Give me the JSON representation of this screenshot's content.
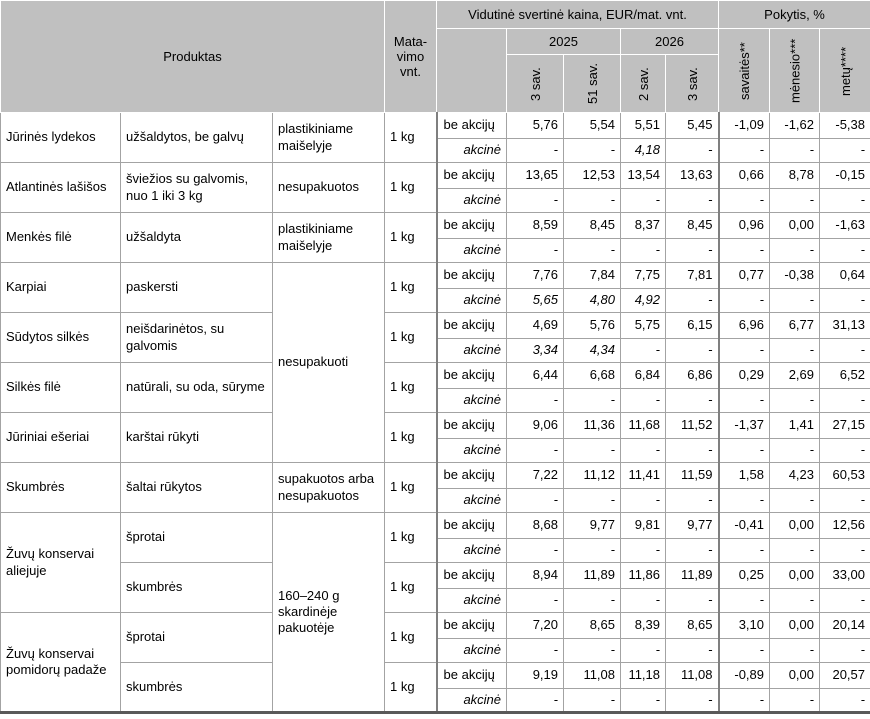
{
  "header": {
    "produktas": "Produktas",
    "unit_col": "Mata-vimo vnt.",
    "price_group": "Vidutinė svertinė kaina, EUR/mat. vnt.",
    "change_group": "Pokytis, %",
    "year_2025": "2025",
    "year_2026": "2026",
    "weeks": [
      "3 sav.",
      "51 sav.",
      "2 sav.",
      "3 sav."
    ],
    "change_cols": [
      "savaitės**",
      "mėnesio***",
      "metų****"
    ]
  },
  "row_labels": {
    "regular": "be akcijų",
    "promo": "akcinė"
  },
  "products": [
    {
      "name": "Jūrinės lydekos",
      "name_rowspan": 2,
      "description": "užšaldytos, be galvų",
      "packaging": "plastikiniame maišelyje",
      "packaging_rowspan": 2,
      "unit": "1 kg",
      "regular": [
        "5,76",
        "5,54",
        "5,51",
        "5,45",
        "-1,09",
        "-1,62",
        "-5,38"
      ],
      "promo": [
        "-",
        "-",
        "4,18",
        "-",
        "-",
        "-",
        "-"
      ]
    },
    {
      "name": "Atlantinės lašišos",
      "name_rowspan": 2,
      "description": "šviežios su galvomis, nuo 1 iki 3 kg",
      "packaging": "nesupakuotos",
      "packaging_rowspan": 2,
      "unit": "1 kg",
      "regular": [
        "13,65",
        "12,53",
        "13,54",
        "13,63",
        "0,66",
        "8,78",
        "-0,15"
      ],
      "promo": [
        "-",
        "-",
        "-",
        "-",
        "-",
        "-",
        "-"
      ]
    },
    {
      "name": "Menkės filė",
      "name_rowspan": 2,
      "description": "užšaldyta",
      "packaging": "plastikiniame maišelyje",
      "packaging_rowspan": 2,
      "unit": "1 kg",
      "regular": [
        "8,59",
        "8,45",
        "8,37",
        "8,45",
        "0,96",
        "0,00",
        "-1,63"
      ],
      "promo": [
        "-",
        "-",
        "-",
        "-",
        "-",
        "-",
        "-"
      ]
    },
    {
      "name": "Karpiai",
      "name_rowspan": 2,
      "description": "paskersti",
      "packaging": "nesupakuoti",
      "packaging_rowspan": 8,
      "unit": "1 kg",
      "regular": [
        "7,76",
        "7,84",
        "7,75",
        "7,81",
        "0,77",
        "-0,38",
        "0,64"
      ],
      "promo": [
        "5,65",
        "4,80",
        "4,92",
        "-",
        "-",
        "-",
        "-"
      ]
    },
    {
      "name": "Sūdytos silkės",
      "name_rowspan": 2,
      "description": "neišdarinėtos, su galvomis",
      "unit": "1 kg",
      "regular": [
        "4,69",
        "5,76",
        "5,75",
        "6,15",
        "6,96",
        "6,77",
        "31,13"
      ],
      "promo": [
        "3,34",
        "4,34",
        "-",
        "-",
        "-",
        "-",
        "-"
      ]
    },
    {
      "name": "Silkės filė",
      "name_rowspan": 2,
      "description": "natūrali, su oda, sūryme",
      "unit": "1 kg",
      "regular": [
        "6,44",
        "6,68",
        "6,84",
        "6,86",
        "0,29",
        "2,69",
        "6,52"
      ],
      "promo": [
        "-",
        "-",
        "-",
        "-",
        "-",
        "-",
        "-"
      ]
    },
    {
      "name": "Jūriniai ešeriai",
      "name_rowspan": 2,
      "description": "karštai rūkyti",
      "unit": "1 kg",
      "regular": [
        "9,06",
        "11,36",
        "11,68",
        "11,52",
        "-1,37",
        "1,41",
        "27,15"
      ],
      "promo": [
        "-",
        "-",
        "-",
        "-",
        "-",
        "-",
        "-"
      ]
    },
    {
      "name": "Skumbrės",
      "name_rowspan": 2,
      "description": "šaltai rūkytos",
      "packaging": "supakuotos arba nesupakuotos",
      "packaging_rowspan": 2,
      "unit": "1 kg",
      "regular": [
        "7,22",
        "11,12",
        "11,41",
        "11,59",
        "1,58",
        "4,23",
        "60,53"
      ],
      "promo": [
        "-",
        "-",
        "-",
        "-",
        "-",
        "-",
        "-"
      ]
    },
    {
      "name": "Žuvų konservai aliejuje",
      "name_rowspan": 4,
      "description": "šprotai",
      "packaging": "160–240 g skardinėje pakuotėje",
      "packaging_rowspan": 8,
      "unit": "1 kg",
      "regular": [
        "8,68",
        "9,77",
        "9,81",
        "9,77",
        "-0,41",
        "0,00",
        "12,56"
      ],
      "promo": [
        "-",
        "-",
        "-",
        "-",
        "-",
        "-",
        "-"
      ]
    },
    {
      "description": "skumbrės",
      "unit": "1 kg",
      "regular": [
        "8,94",
        "11,89",
        "11,86",
        "11,89",
        "0,25",
        "0,00",
        "33,00"
      ],
      "promo": [
        "-",
        "-",
        "-",
        "-",
        "-",
        "-",
        "-"
      ]
    },
    {
      "name": "Žuvų konservai pomidorų padaže",
      "name_rowspan": 4,
      "description": "šprotai",
      "unit": "1 kg",
      "regular": [
        "7,20",
        "8,65",
        "8,39",
        "8,65",
        "3,10",
        "0,00",
        "20,14"
      ],
      "promo": [
        "-",
        "-",
        "-",
        "-",
        "-",
        "-",
        "-"
      ]
    },
    {
      "description": "skumbrės",
      "unit": "1 kg",
      "regular": [
        "9,19",
        "11,08",
        "11,18",
        "11,08",
        "-0,89",
        "0,00",
        "20,57"
      ],
      "promo": [
        "-",
        "-",
        "-",
        "-",
        "-",
        "-",
        "-"
      ]
    }
  ]
}
